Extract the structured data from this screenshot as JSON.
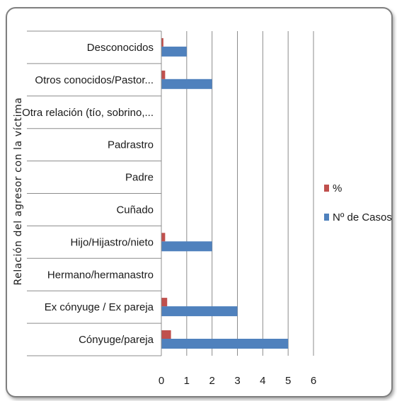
{
  "chart_data": {
    "type": "bar",
    "orientation": "horizontal",
    "categories": [
      "Cónyuge/pareja",
      "Ex cónyuge / Ex pareja",
      "Hermano/hermanastro",
      "Hijo/Hijastro/nieto",
      "Cuñado",
      "Padre",
      "Padrastro",
      "Otra relación (tío, sobrino,...",
      "Otros conocidos/Pastor...",
      "Desconocidos"
    ],
    "series": [
      {
        "name": "%",
        "color": "#c0504d",
        "values": [
          0.38,
          0.23,
          0,
          0.15,
          0,
          0,
          0,
          0,
          0.15,
          0.08
        ]
      },
      {
        "name": "Nº de Casos",
        "color": "#4f81bd",
        "values": [
          5,
          3,
          0,
          2,
          0,
          0,
          0,
          0,
          2,
          1
        ]
      }
    ],
    "xlim": [
      0,
      6
    ],
    "xticks": [
      "0",
      "1",
      "2",
      "3",
      "4",
      "5",
      "6"
    ],
    "ylabel": "Relación del agresor con la víctima",
    "xlabel": "",
    "grid": true,
    "legend_position": "right"
  }
}
